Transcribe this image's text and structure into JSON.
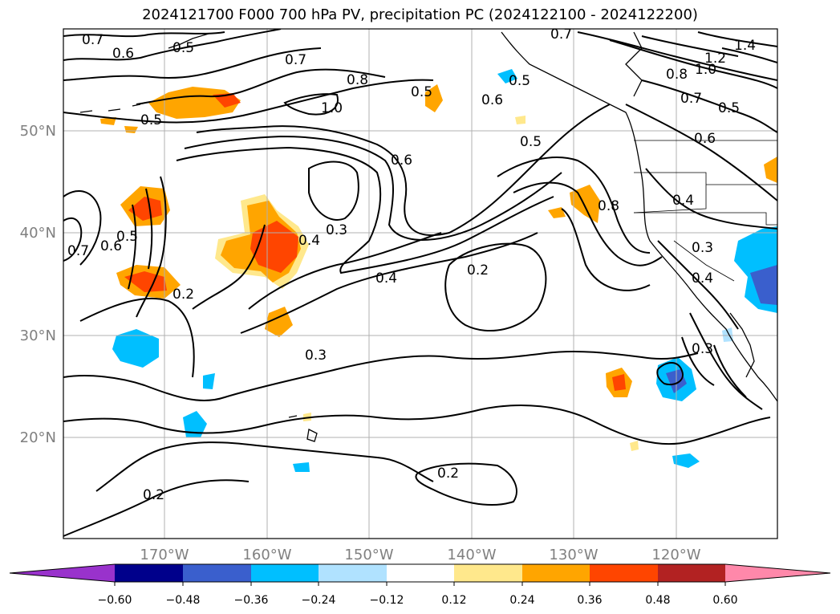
{
  "title": "2024121700 F000 700 hPa PV, precipitation PC (2024122100 - 2024122200)",
  "map": {
    "lat_ticks": [
      "50°N",
      "40°N",
      "30°N",
      "20°N"
    ],
    "lon_ticks": [
      "170°W",
      "160°W",
      "150°W",
      "140°W",
      "130°W",
      "120°W"
    ],
    "contour_labels": [
      "0.7",
      "0.6",
      "0.5",
      "0.7",
      "0.8",
      "1.0",
      "0.5",
      "0.5",
      "0.7",
      "1.4",
      "1.2",
      "1.0",
      "0.8",
      "0.7",
      "0.5",
      "0.6",
      "0.5",
      "0.6",
      "0.5",
      "0.6",
      "0.8",
      "0.4",
      "0.3",
      "0.4",
      "0.3",
      "0.2",
      "0.4",
      "0.2",
      "0.7",
      "0.6",
      "0.5",
      "0.3",
      "0.4",
      "0.3",
      "0.2",
      "0.2"
    ]
  },
  "colorbar": {
    "ticks": [
      "−0.60",
      "−0.48",
      "−0.36",
      "−0.24",
      "−0.12",
      "0.12",
      "0.24",
      "0.36",
      "0.48",
      "0.60"
    ],
    "colors": [
      "#9932cc",
      "#00008b",
      "#3a5fcd",
      "#00bfff",
      "#b0e2ff",
      "#ffffff",
      "#ffe88c",
      "#ffa500",
      "#ff4500",
      "#b22222",
      "#ff88aa"
    ]
  }
}
